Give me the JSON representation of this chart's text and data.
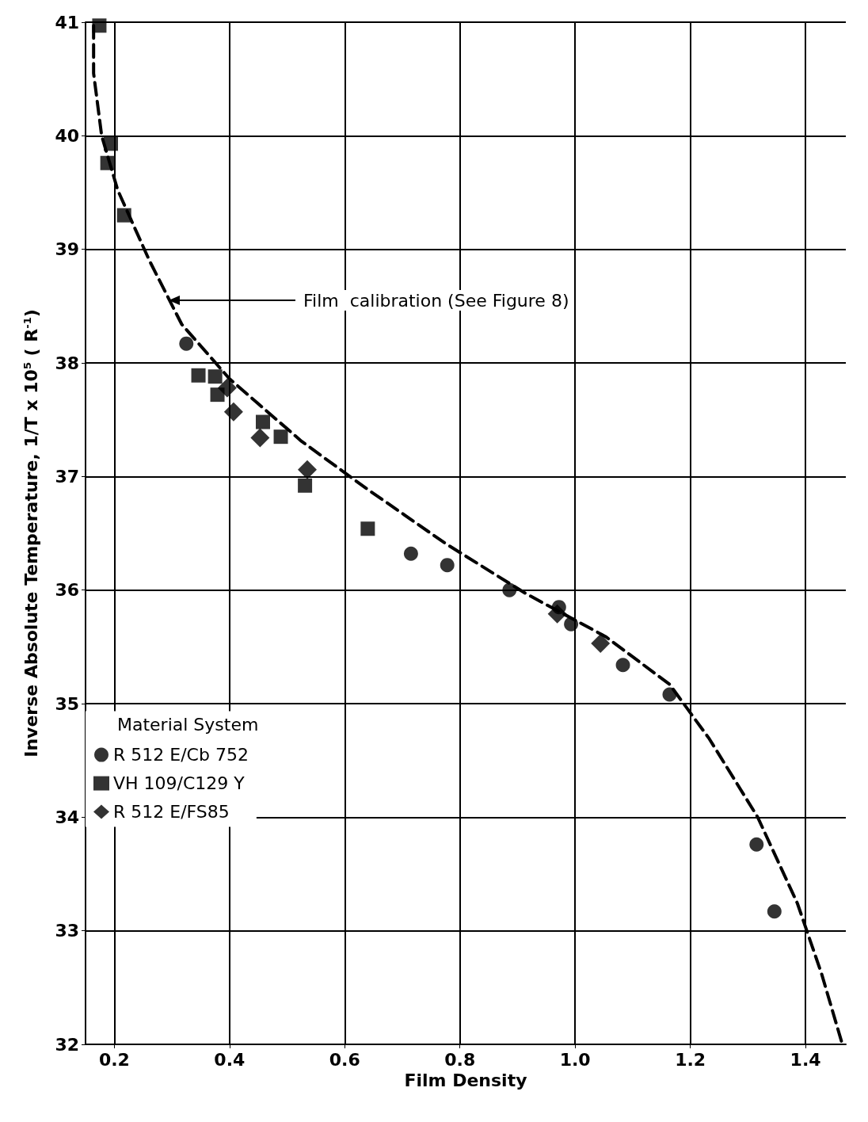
{
  "chart_data": {
    "type": "scatter",
    "xlabel": "Film Density",
    "ylabel": "Inverse Absolute Temperature, 1/T x 10$^{5}$ ( R$^{-1}$)",
    "legend_title": "Material System",
    "xlim": [
      0.15,
      1.47
    ],
    "ylim": [
      32,
      41
    ],
    "xticks": [
      0.2,
      0.4,
      0.6,
      0.8,
      {
        "value": 1,
        "label": "1.0"
      },
      1.2,
      1.4
    ],
    "yticks": [
      32,
      33,
      34,
      35,
      36,
      37,
      38,
      39,
      40,
      41
    ],
    "grid": true,
    "legend": "center left",
    "annotations": [
      "Film  calibration (See Figure 8)"
    ],
    "series": [
      {
        "name": "R 512 E/Cb 752",
        "color": "#000000",
        "marker": "circle",
        "x": [
          0.325,
          0.715,
          0.778,
          0.886,
          0.972,
          0.993,
          1.083,
          1.164,
          1.315,
          1.346
        ],
        "values": [
          38.17,
          36.32,
          36.22,
          36.0,
          35.85,
          35.7,
          35.34,
          35.08,
          33.76,
          33.17
        ]
      },
      {
        "name": "VH 109/C129 Y",
        "color": "#000000",
        "marker": "square",
        "x": [
          0.174,
          0.194,
          0.188,
          0.217,
          0.346,
          0.375,
          0.379,
          0.458,
          0.489,
          0.531,
          0.64
        ],
        "values": [
          40.97,
          39.93,
          39.76,
          39.3,
          37.89,
          37.88,
          37.72,
          37.48,
          37.35,
          36.92,
          36.54
        ]
      },
      {
        "name": "R 512 E/FS85",
        "color": "#000000",
        "marker": "diamond",
        "x": [
          0.396,
          0.407,
          0.453,
          0.535,
          0.969,
          1.044
        ],
        "values": [
          37.78,
          37.57,
          37.34,
          37.06,
          35.79,
          35.53
        ]
      },
      {
        "type": "line",
        "color": "#000000",
        "line_style": "dashed",
        "marker": "none",
        "x": [
          0.164,
          0.164,
          0.178,
          0.206,
          0.261,
          0.317,
          0.4,
          0.525,
          0.636,
          0.775,
          0.914,
          1.053,
          1.164,
          1.233,
          1.317,
          1.386,
          1.428,
          1.464
        ],
        "values": [
          40.97,
          40.55,
          40.0,
          39.52,
          38.9,
          38.34,
          37.86,
          37.31,
          36.9,
          36.41,
          35.97,
          35.59,
          35.17,
          34.69,
          34.0,
          33.24,
          32.62,
          32.0
        ]
      }
    ]
  }
}
